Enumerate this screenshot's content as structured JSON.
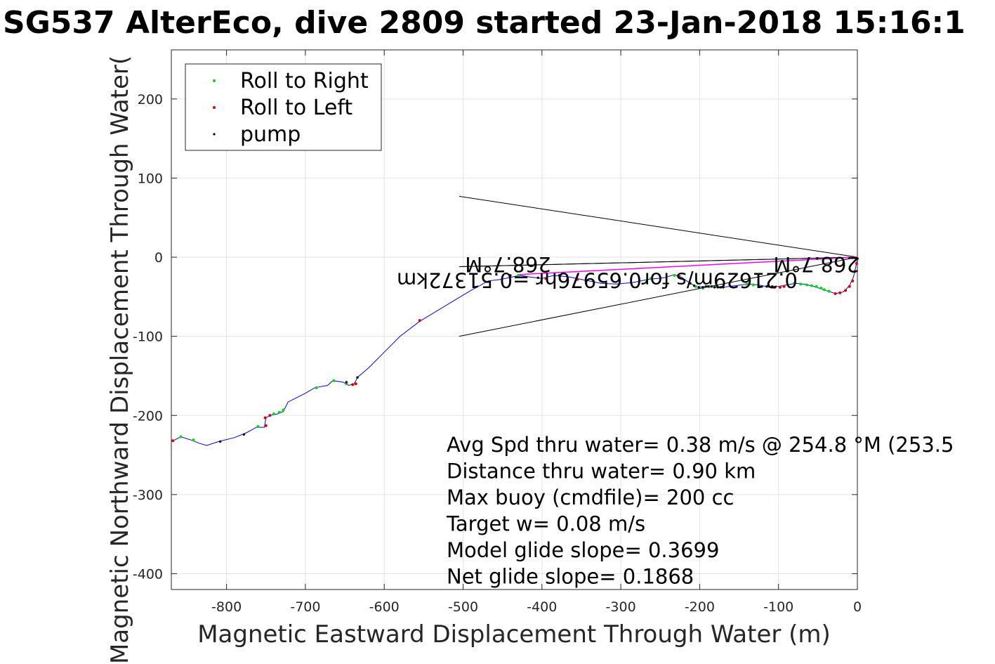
{
  "chart_data": {
    "type": "scatter",
    "title": "SG537 AlterEco, dive 2809 started 23-Jan-2018 15:16:1",
    "xlabel": "Magnetic Eastward Displacement Through Water (m)",
    "ylabel": "Magnetic Northward Displacement Through Water(",
    "xlim": [
      -870,
      0
    ],
    "ylim": [
      -420,
      262
    ],
    "xticks": [
      -800,
      -700,
      -600,
      -500,
      -400,
      -300,
      -200,
      -100,
      0
    ],
    "yticks": [
      -400,
      -300,
      -200,
      -100,
      0,
      100,
      200
    ],
    "grid": true,
    "legend_position": "top-left",
    "legend": [
      {
        "name": "Roll to Right",
        "color": "#00e000"
      },
      {
        "name": "Roll to Left",
        "color": "#e00000"
      },
      {
        "name": "pump",
        "color": "#000000"
      }
    ],
    "track_color": "#0000ff",
    "track": [
      [
        -870,
        -233
      ],
      [
        -858,
        -227
      ],
      [
        -845,
        -231
      ],
      [
        -835,
        -235
      ],
      [
        -825,
        -238
      ],
      [
        -810,
        -233
      ],
      [
        -790,
        -228
      ],
      [
        -775,
        -222
      ],
      [
        -762,
        -215
      ],
      [
        -752,
        -215
      ],
      [
        -750,
        -203
      ],
      [
        -745,
        -200
      ],
      [
        -735,
        -198
      ],
      [
        -728,
        -195
      ],
      [
        -722,
        -183
      ],
      [
        -700,
        -172
      ],
      [
        -688,
        -165
      ],
      [
        -672,
        -162
      ],
      [
        -665,
        -156
      ],
      [
        -652,
        -158
      ],
      [
        -645,
        -162
      ],
      [
        -638,
        -160
      ],
      [
        -634,
        -152
      ],
      [
        -620,
        -140
      ],
      [
        -600,
        -120
      ],
      [
        -580,
        -100
      ],
      [
        -555,
        -81
      ],
      [
        -520,
        -60
      ],
      [
        -490,
        -42
      ],
      [
        -468,
        -30
      ],
      [
        -452,
        -28
      ],
      [
        -438,
        -25
      ],
      [
        -428,
        -23
      ],
      [
        -415,
        -25
      ],
      [
        -400,
        -27
      ],
      [
        -385,
        -23
      ],
      [
        -365,
        -25
      ],
      [
        -345,
        -29
      ],
      [
        -325,
        -33
      ],
      [
        -305,
        -34
      ],
      [
        -285,
        -32
      ],
      [
        -265,
        -28
      ],
      [
        -245,
        -26
      ],
      [
        -232,
        -22
      ],
      [
        -222,
        -26
      ],
      [
        -212,
        -33
      ],
      [
        -202,
        -38
      ],
      [
        -192,
        -37
      ],
      [
        -180,
        -38
      ],
      [
        -170,
        -38
      ],
      [
        -155,
        -36
      ],
      [
        -138,
        -34
      ],
      [
        -125,
        -35
      ],
      [
        -112,
        -38
      ],
      [
        -100,
        -37
      ],
      [
        -90,
        -35
      ],
      [
        -78,
        -33
      ],
      [
        -68,
        -34
      ],
      [
        -55,
        -37
      ],
      [
        -40,
        -42
      ],
      [
        -28,
        -46
      ],
      [
        -18,
        -44
      ],
      [
        -10,
        -36
      ],
      [
        -5,
        -25
      ],
      [
        -2,
        -12
      ],
      [
        0,
        -3
      ]
    ],
    "roll_right": [
      [
        -858,
        -227
      ],
      [
        -842,
        -231
      ],
      [
        -760,
        -214
      ],
      [
        -740,
        -198
      ],
      [
        -733,
        -196
      ],
      [
        -728,
        -193
      ],
      [
        -686,
        -165
      ],
      [
        -664,
        -156
      ],
      [
        -648,
        -160
      ],
      [
        -430,
        -23
      ],
      [
        -262,
        -27
      ],
      [
        -232,
        -23
      ],
      [
        -205,
        -37
      ],
      [
        -196,
        -39
      ],
      [
        -188,
        -37
      ],
      [
        -140,
        -34
      ],
      [
        -132,
        -35
      ],
      [
        -125,
        -36
      ],
      [
        -80,
        -33
      ],
      [
        -72,
        -34
      ],
      [
        -64,
        -35
      ],
      [
        -58,
        -36
      ],
      [
        -52,
        -37
      ],
      [
        -46,
        -39
      ],
      [
        -42,
        -41
      ],
      [
        -36,
        -43
      ]
    ],
    "roll_left": [
      [
        -868,
        -232
      ],
      [
        -750,
        -213
      ],
      [
        -751,
        -203
      ],
      [
        -745,
        -200
      ],
      [
        -640,
        -161
      ],
      [
        -636,
        -160
      ],
      [
        -555,
        -80
      ],
      [
        -395,
        -27
      ],
      [
        -355,
        -28
      ],
      [
        -226,
        -24
      ],
      [
        -105,
        -38
      ],
      [
        -98,
        -38
      ],
      [
        -93,
        -37
      ],
      [
        -28,
        -46
      ],
      [
        -22,
        -45
      ],
      [
        -15,
        -42
      ],
      [
        -10,
        -37
      ],
      [
        -6,
        -30
      ],
      [
        -3,
        -18
      ],
      [
        -1,
        -8
      ],
      [
        0,
        -2
      ]
    ],
    "pump": [
      [
        -808,
        -233
      ],
      [
        -778,
        -224
      ],
      [
        -648,
        -158
      ],
      [
        -634,
        -152
      ],
      [
        -440,
        -23
      ],
      [
        -405,
        -26
      ],
      [
        -378,
        -23
      ],
      [
        -212,
        -33
      ],
      [
        -207,
        -36
      ],
      [
        -201,
        -38
      ],
      [
        -196,
        -38
      ],
      [
        -192,
        -37
      ],
      [
        -189,
        -37
      ],
      [
        -185,
        -37
      ],
      [
        -181,
        -38
      ],
      [
        -177,
        -38
      ],
      [
        -173,
        -38
      ],
      [
        -170,
        -38
      ],
      [
        -115,
        -37
      ],
      [
        -108,
        -37
      ]
    ],
    "current_vector": {
      "color": "#ff00ff",
      "from": [
        -430,
        -22
      ],
      "to": [
        0,
        0
      ]
    },
    "wedges": [
      {
        "tip": [
          0,
          0
        ],
        "ends": [
          [
            -505,
            77
          ],
          [
            -505,
            -100
          ]
        ]
      },
      {
        "tip": [
          0,
          0
        ],
        "ends": [
          [
            -505,
            -12
          ],
          [
            -505,
            -12
          ]
        ]
      }
    ],
    "annotations": {
      "upside_down": [
        {
          "text": "0.21629m/s for0.65976hr =0.51372km",
          "at": [
            -330,
            -20
          ]
        },
        {
          "text": "268.7°M",
          "at": [
            -443,
            0
          ]
        },
        {
          "text": "268.7°M",
          "at": [
            -52,
            0
          ]
        }
      ],
      "stats": [
        "Avg Spd thru water=  0.38 m/s @ 254.8 °M (253.5",
        "Distance thru water=  0.90 km",
        "Max buoy (cmdfile)= 200 cc",
        "Target w= 0.08 m/s",
        "Model glide slope= 0.3699",
        "Net glide slope= 0.1868"
      ]
    }
  }
}
